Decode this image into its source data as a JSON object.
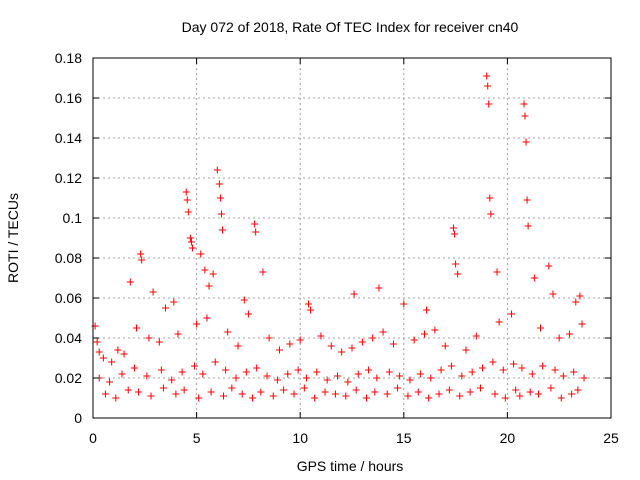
{
  "chart_data": {
    "type": "scatter",
    "title": "Day 072 of 2018, Rate Of TEC Index for receiver cn40",
    "xlabel": "GPS time / hours",
    "ylabel": "ROTI / TECUs",
    "xlim": [
      0,
      25
    ],
    "ylim": [
      0,
      0.18
    ],
    "x_ticks": [
      0,
      5,
      10,
      15,
      20,
      25
    ],
    "x_tick_labels": [
      "0",
      "5",
      "10",
      "15",
      "20",
      "25"
    ],
    "y_ticks": [
      0,
      0.02,
      0.04,
      0.06,
      0.08,
      0.1,
      0.12,
      0.14,
      0.16,
      0.18
    ],
    "y_tick_labels": [
      "0",
      "0.02",
      "0.04",
      "0.06",
      "0.08",
      "0.1",
      "0.12",
      "0.14",
      "0.16",
      "0.18"
    ],
    "grid": true,
    "marker": "+",
    "color": "#ff0000",
    "series": [
      {
        "name": "ROTI",
        "x": [
          0.1,
          0.2,
          0.3,
          1.2,
          1.8,
          2.3,
          2.35,
          2.9,
          3.5,
          3.9,
          4.5,
          4.55,
          4.6,
          4.7,
          4.75,
          4.8,
          5.2,
          5.4,
          5.6,
          5.8,
          6.0,
          6.1,
          6.15,
          6.2,
          6.25,
          7.3,
          7.8,
          7.85,
          8.2,
          10.4,
          10.5,
          12.6,
          13.8,
          15.0,
          16.1,
          17.4,
          17.45,
          17.5,
          17.6,
          19.0,
          19.05,
          19.1,
          19.15,
          19.2,
          19.5,
          20.8,
          20.85,
          20.9,
          20.95,
          21.0,
          21.3,
          22.0,
          22.2,
          23.3,
          23.5,
          0.5,
          0.9,
          1.5,
          2.1,
          2.7,
          3.2,
          4.1,
          5.0,
          5.5,
          6.5,
          7.0,
          7.5,
          8.5,
          9.0,
          9.5,
          10.0,
          11.0,
          11.5,
          12.0,
          12.5,
          13.0,
          13.5,
          14.0,
          14.5,
          15.5,
          16.0,
          16.5,
          17.0,
          18.0,
          18.5,
          19.6,
          20.2,
          21.6,
          22.5,
          23.0,
          23.6,
          0.3,
          0.8,
          1.4,
          2.0,
          2.6,
          3.3,
          3.8,
          4.3,
          4.9,
          5.3,
          5.9,
          6.4,
          6.9,
          7.4,
          7.9,
          8.4,
          8.9,
          9.4,
          9.9,
          10.3,
          10.8,
          11.3,
          11.8,
          12.3,
          12.8,
          13.3,
          13.7,
          14.3,
          14.8,
          15.3,
          15.8,
          16.3,
          16.8,
          17.3,
          17.8,
          18.3,
          18.8,
          19.3,
          19.8,
          20.3,
          20.7,
          21.2,
          21.7,
          22.3,
          22.7,
          23.2,
          23.7,
          0.6,
          1.1,
          1.7,
          2.2,
          2.8,
          3.4,
          4.0,
          4.4,
          5.1,
          5.7,
          6.3,
          6.7,
          7.2,
          7.7,
          8.1,
          8.7,
          9.2,
          9.7,
          10.2,
          10.7,
          11.2,
          11.7,
          12.2,
          12.7,
          13.2,
          13.6,
          14.2,
          14.7,
          15.2,
          15.7,
          16.2,
          16.7,
          17.2,
          17.7,
          18.2,
          18.7,
          19.4,
          19.9,
          20.4,
          20.6,
          21.1,
          21.5,
          22.1,
          22.6,
          23.1,
          23.4
        ],
        "y": [
          0.046,
          0.038,
          0.033,
          0.034,
          0.068,
          0.082,
          0.079,
          0.063,
          0.055,
          0.058,
          0.113,
          0.109,
          0.103,
          0.09,
          0.088,
          0.085,
          0.082,
          0.074,
          0.066,
          0.072,
          0.124,
          0.117,
          0.11,
          0.102,
          0.094,
          0.059,
          0.097,
          0.093,
          0.073,
          0.057,
          0.054,
          0.062,
          0.065,
          0.057,
          0.054,
          0.095,
          0.092,
          0.077,
          0.072,
          0.171,
          0.166,
          0.157,
          0.11,
          0.102,
          0.073,
          0.157,
          0.151,
          0.138,
          0.109,
          0.096,
          0.07,
          0.076,
          0.062,
          0.058,
          0.061,
          0.03,
          0.028,
          0.032,
          0.045,
          0.04,
          0.038,
          0.042,
          0.047,
          0.05,
          0.043,
          0.036,
          0.052,
          0.04,
          0.034,
          0.037,
          0.039,
          0.041,
          0.036,
          0.033,
          0.035,
          0.038,
          0.04,
          0.043,
          0.037,
          0.039,
          0.042,
          0.044,
          0.036,
          0.034,
          0.041,
          0.048,
          0.052,
          0.045,
          0.04,
          0.042,
          0.047,
          0.02,
          0.018,
          0.022,
          0.025,
          0.021,
          0.024,
          0.019,
          0.023,
          0.026,
          0.022,
          0.028,
          0.024,
          0.02,
          0.023,
          0.025,
          0.021,
          0.019,
          0.022,
          0.024,
          0.02,
          0.023,
          0.019,
          0.021,
          0.018,
          0.022,
          0.024,
          0.02,
          0.023,
          0.021,
          0.019,
          0.022,
          0.02,
          0.024,
          0.026,
          0.021,
          0.023,
          0.025,
          0.028,
          0.024,
          0.027,
          0.025,
          0.022,
          0.026,
          0.024,
          0.021,
          0.023,
          0.02,
          0.012,
          0.01,
          0.014,
          0.013,
          0.011,
          0.015,
          0.012,
          0.014,
          0.01,
          0.013,
          0.011,
          0.015,
          0.012,
          0.01,
          0.013,
          0.011,
          0.014,
          0.012,
          0.015,
          0.01,
          0.013,
          0.012,
          0.011,
          0.014,
          0.01,
          0.013,
          0.012,
          0.015,
          0.011,
          0.013,
          0.01,
          0.012,
          0.014,
          0.011,
          0.013,
          0.015,
          0.012,
          0.01,
          0.014,
          0.011,
          0.013,
          0.012,
          0.015,
          0.01,
          0.012,
          0.014
        ]
      }
    ]
  }
}
